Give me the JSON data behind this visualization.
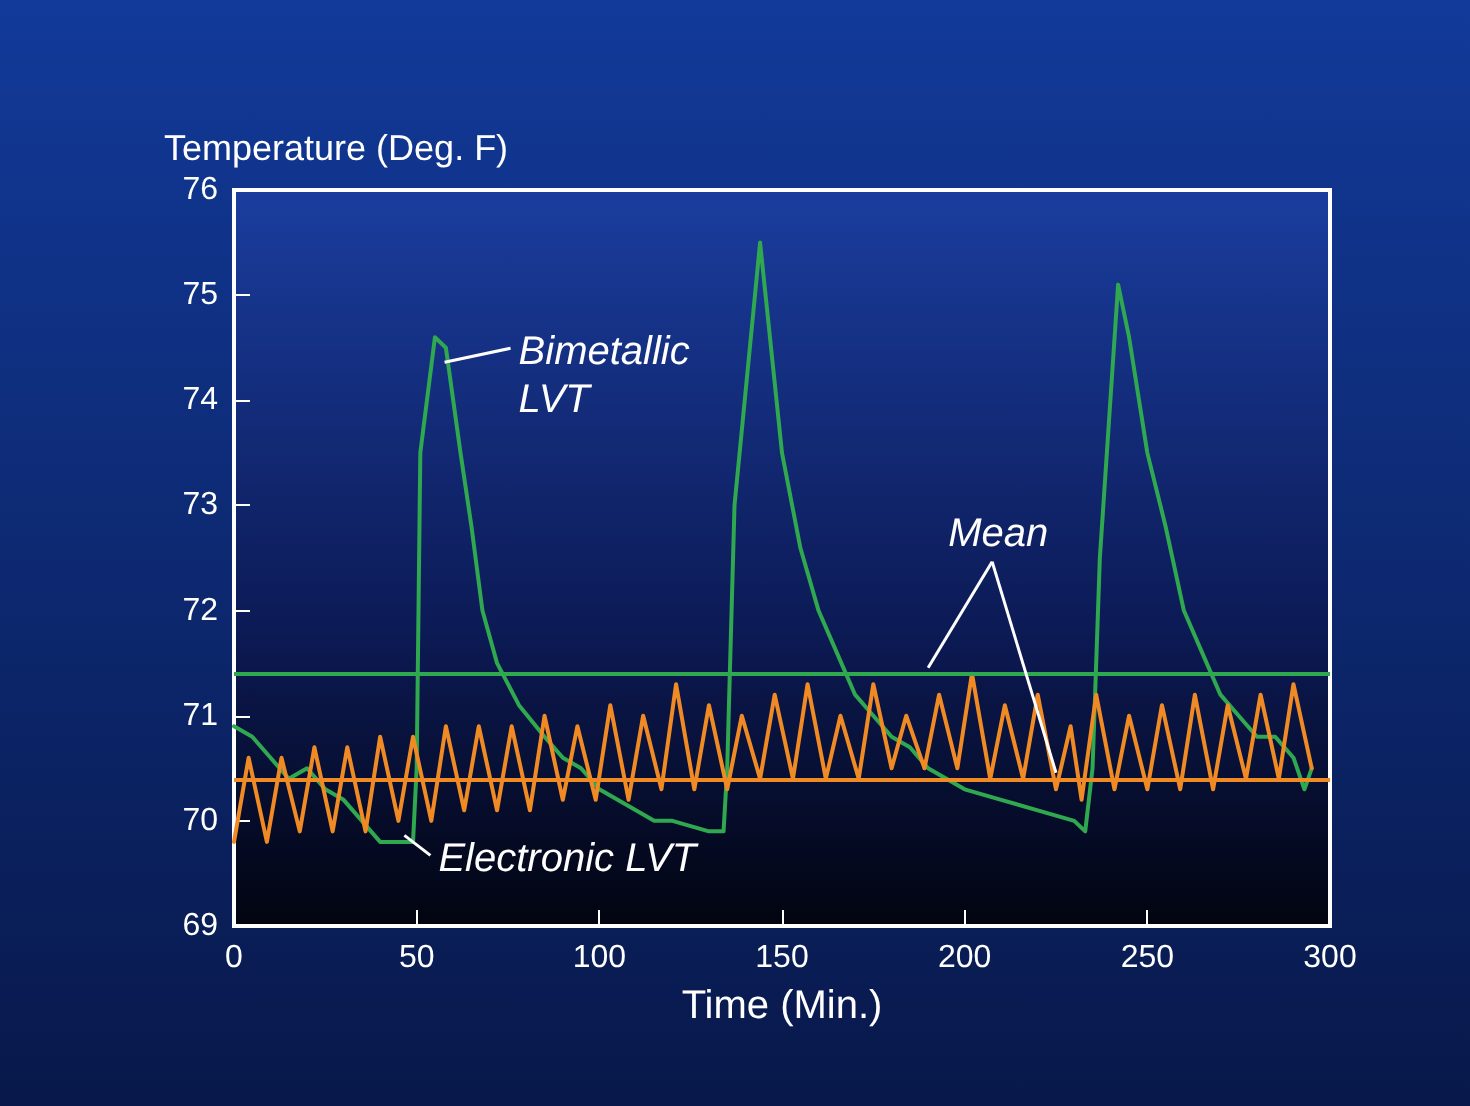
{
  "chart_data": {
    "type": "line",
    "ylabel": "Temperature (Deg. F)",
    "xlabel": "Time (Min.)",
    "xlim": [
      0,
      300
    ],
    "xticks": [
      0,
      50,
      100,
      150,
      200,
      250,
      300
    ],
    "ylim": [
      69,
      76
    ],
    "yticks": [
      69,
      70,
      71,
      72,
      73,
      74,
      75,
      76
    ],
    "grid": false,
    "legend": false,
    "marker": "none",
    "line_style": "solid",
    "series": [
      {
        "name": "Bimetallic LVT",
        "color": "#2fa84f",
        "x": [
          0,
          5,
          10,
          15,
          20,
          25,
          30,
          35,
          40,
          45,
          49,
          50,
          51,
          55,
          58,
          62,
          65,
          68,
          72,
          78,
          85,
          90,
          95,
          100,
          105,
          110,
          115,
          120,
          130,
          134,
          135,
          137,
          144,
          147,
          150,
          155,
          160,
          165,
          170,
          175,
          180,
          185,
          190,
          195,
          200,
          210,
          220,
          230,
          233,
          235,
          237,
          242,
          245,
          250,
          255,
          260,
          265,
          270,
          275,
          280,
          285,
          290,
          293,
          295
        ],
        "values": [
          70.9,
          70.8,
          70.6,
          70.4,
          70.5,
          70.3,
          70.2,
          70.0,
          69.8,
          69.8,
          69.8,
          70.5,
          73.5,
          74.6,
          74.5,
          73.5,
          72.8,
          72.0,
          71.5,
          71.1,
          70.8,
          70.6,
          70.5,
          70.3,
          70.2,
          70.1,
          70.0,
          70.0,
          69.9,
          69.9,
          70.5,
          73.0,
          75.5,
          74.5,
          73.5,
          72.6,
          72.0,
          71.6,
          71.2,
          71.0,
          70.8,
          70.7,
          70.5,
          70.4,
          70.3,
          70.2,
          70.1,
          70.0,
          69.9,
          70.5,
          72.5,
          75.1,
          74.6,
          73.5,
          72.8,
          72.0,
          71.6,
          71.2,
          71.0,
          70.8,
          70.8,
          70.6,
          70.3,
          70.5
        ]
      },
      {
        "name": "Electronic LVT",
        "color": "#f08a24",
        "x": [
          0,
          4,
          9,
          13,
          18,
          22,
          27,
          31,
          36,
          40,
          45,
          49,
          54,
          58,
          63,
          67,
          72,
          76,
          81,
          85,
          90,
          94,
          99,
          103,
          108,
          112,
          117,
          121,
          126,
          130,
          135,
          139,
          144,
          148,
          153,
          157,
          162,
          166,
          171,
          175,
          180,
          184,
          189,
          193,
          198,
          202,
          207,
          211,
          216,
          220,
          225,
          229,
          232,
          236,
          241,
          245,
          250,
          254,
          259,
          263,
          268,
          272,
          277,
          281,
          286,
          290,
          295
        ],
        "values": [
          69.8,
          70.6,
          69.8,
          70.6,
          69.9,
          70.7,
          69.9,
          70.7,
          69.9,
          70.8,
          70.0,
          70.8,
          70.0,
          70.9,
          70.1,
          70.9,
          70.1,
          70.9,
          70.1,
          71.0,
          70.2,
          70.9,
          70.2,
          71.1,
          70.2,
          71.0,
          70.3,
          71.3,
          70.3,
          71.1,
          70.3,
          71.0,
          70.4,
          71.2,
          70.4,
          71.3,
          70.4,
          71.0,
          70.4,
          71.3,
          70.5,
          71.0,
          70.5,
          71.2,
          70.5,
          71.4,
          70.4,
          71.1,
          70.4,
          71.2,
          70.3,
          70.9,
          70.2,
          71.2,
          70.3,
          71.0,
          70.3,
          71.1,
          70.3,
          71.2,
          70.3,
          71.1,
          70.4,
          71.2,
          70.4,
          71.3,
          70.5
        ]
      }
    ],
    "ref_lines": [
      {
        "axis": "y",
        "value": 71.4,
        "label": null,
        "color": "#2fa84f"
      },
      {
        "axis": "y",
        "value": 70.4,
        "label": null,
        "color": "#f08a24"
      }
    ],
    "annotations": [
      {
        "text": "Mean",
        "x": 190,
        "y": 71.4
      }
    ]
  }
}
